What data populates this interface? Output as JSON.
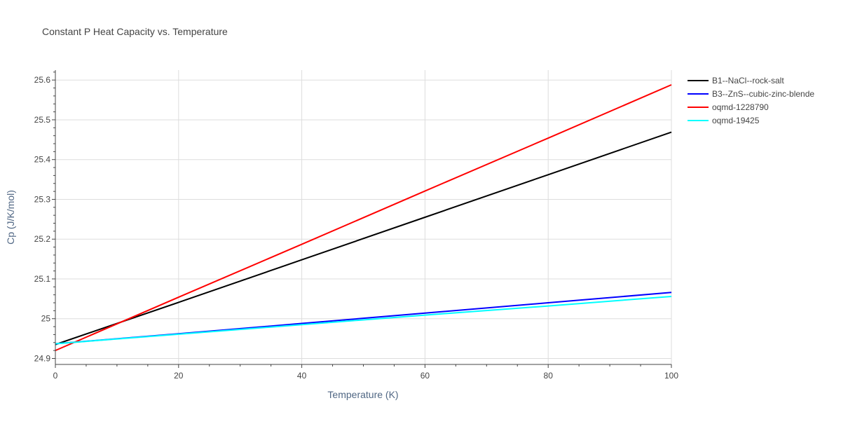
{
  "chart_data": {
    "type": "line",
    "title": "Constant P Heat Capacity vs. Temperature",
    "xlabel": "Temperature (K)",
    "ylabel": "Cp (J/K/mol)",
    "xlim": [
      0,
      100
    ],
    "ylim": [
      24.885,
      25.625
    ],
    "x_ticks": [
      0,
      20,
      40,
      60,
      80,
      100
    ],
    "y_ticks": [
      24.9,
      25,
      25.1,
      25.2,
      25.3,
      25.4,
      25.5,
      25.6
    ],
    "x_tick_labels": [
      "0",
      "20",
      "40",
      "60",
      "80",
      "100"
    ],
    "y_tick_labels": [
      "24.9",
      "25",
      "25.1",
      "25.2",
      "25.3",
      "25.4",
      "25.5",
      "25.6"
    ],
    "grid": true,
    "legend_position": "top-right outside",
    "series": [
      {
        "name": "B1--NaCl--rock-salt",
        "color": "#000000",
        "x": [
          0,
          20,
          40,
          60,
          80,
          100
        ],
        "y": [
          24.935,
          25.041,
          25.148,
          25.255,
          25.362,
          25.469
        ]
      },
      {
        "name": "B3--ZnS--cubic-zinc-blende",
        "color": "#0000ff",
        "x": [
          0,
          20,
          40,
          60,
          80,
          100
        ],
        "y": [
          24.937,
          24.962,
          24.988,
          25.014,
          25.04,
          25.066
        ]
      },
      {
        "name": "oqmd-1228790",
        "color": "#ff0000",
        "x": [
          0,
          20,
          40,
          60,
          80,
          100
        ],
        "y": [
          24.92,
          25.054,
          25.187,
          25.321,
          25.454,
          25.588
        ]
      },
      {
        "name": "oqmd-19425",
        "color": "#00ffff",
        "x": [
          0,
          20,
          40,
          60,
          80,
          100
        ],
        "y": [
          24.937,
          24.961,
          24.985,
          25.009,
          25.032,
          25.056
        ]
      }
    ]
  }
}
